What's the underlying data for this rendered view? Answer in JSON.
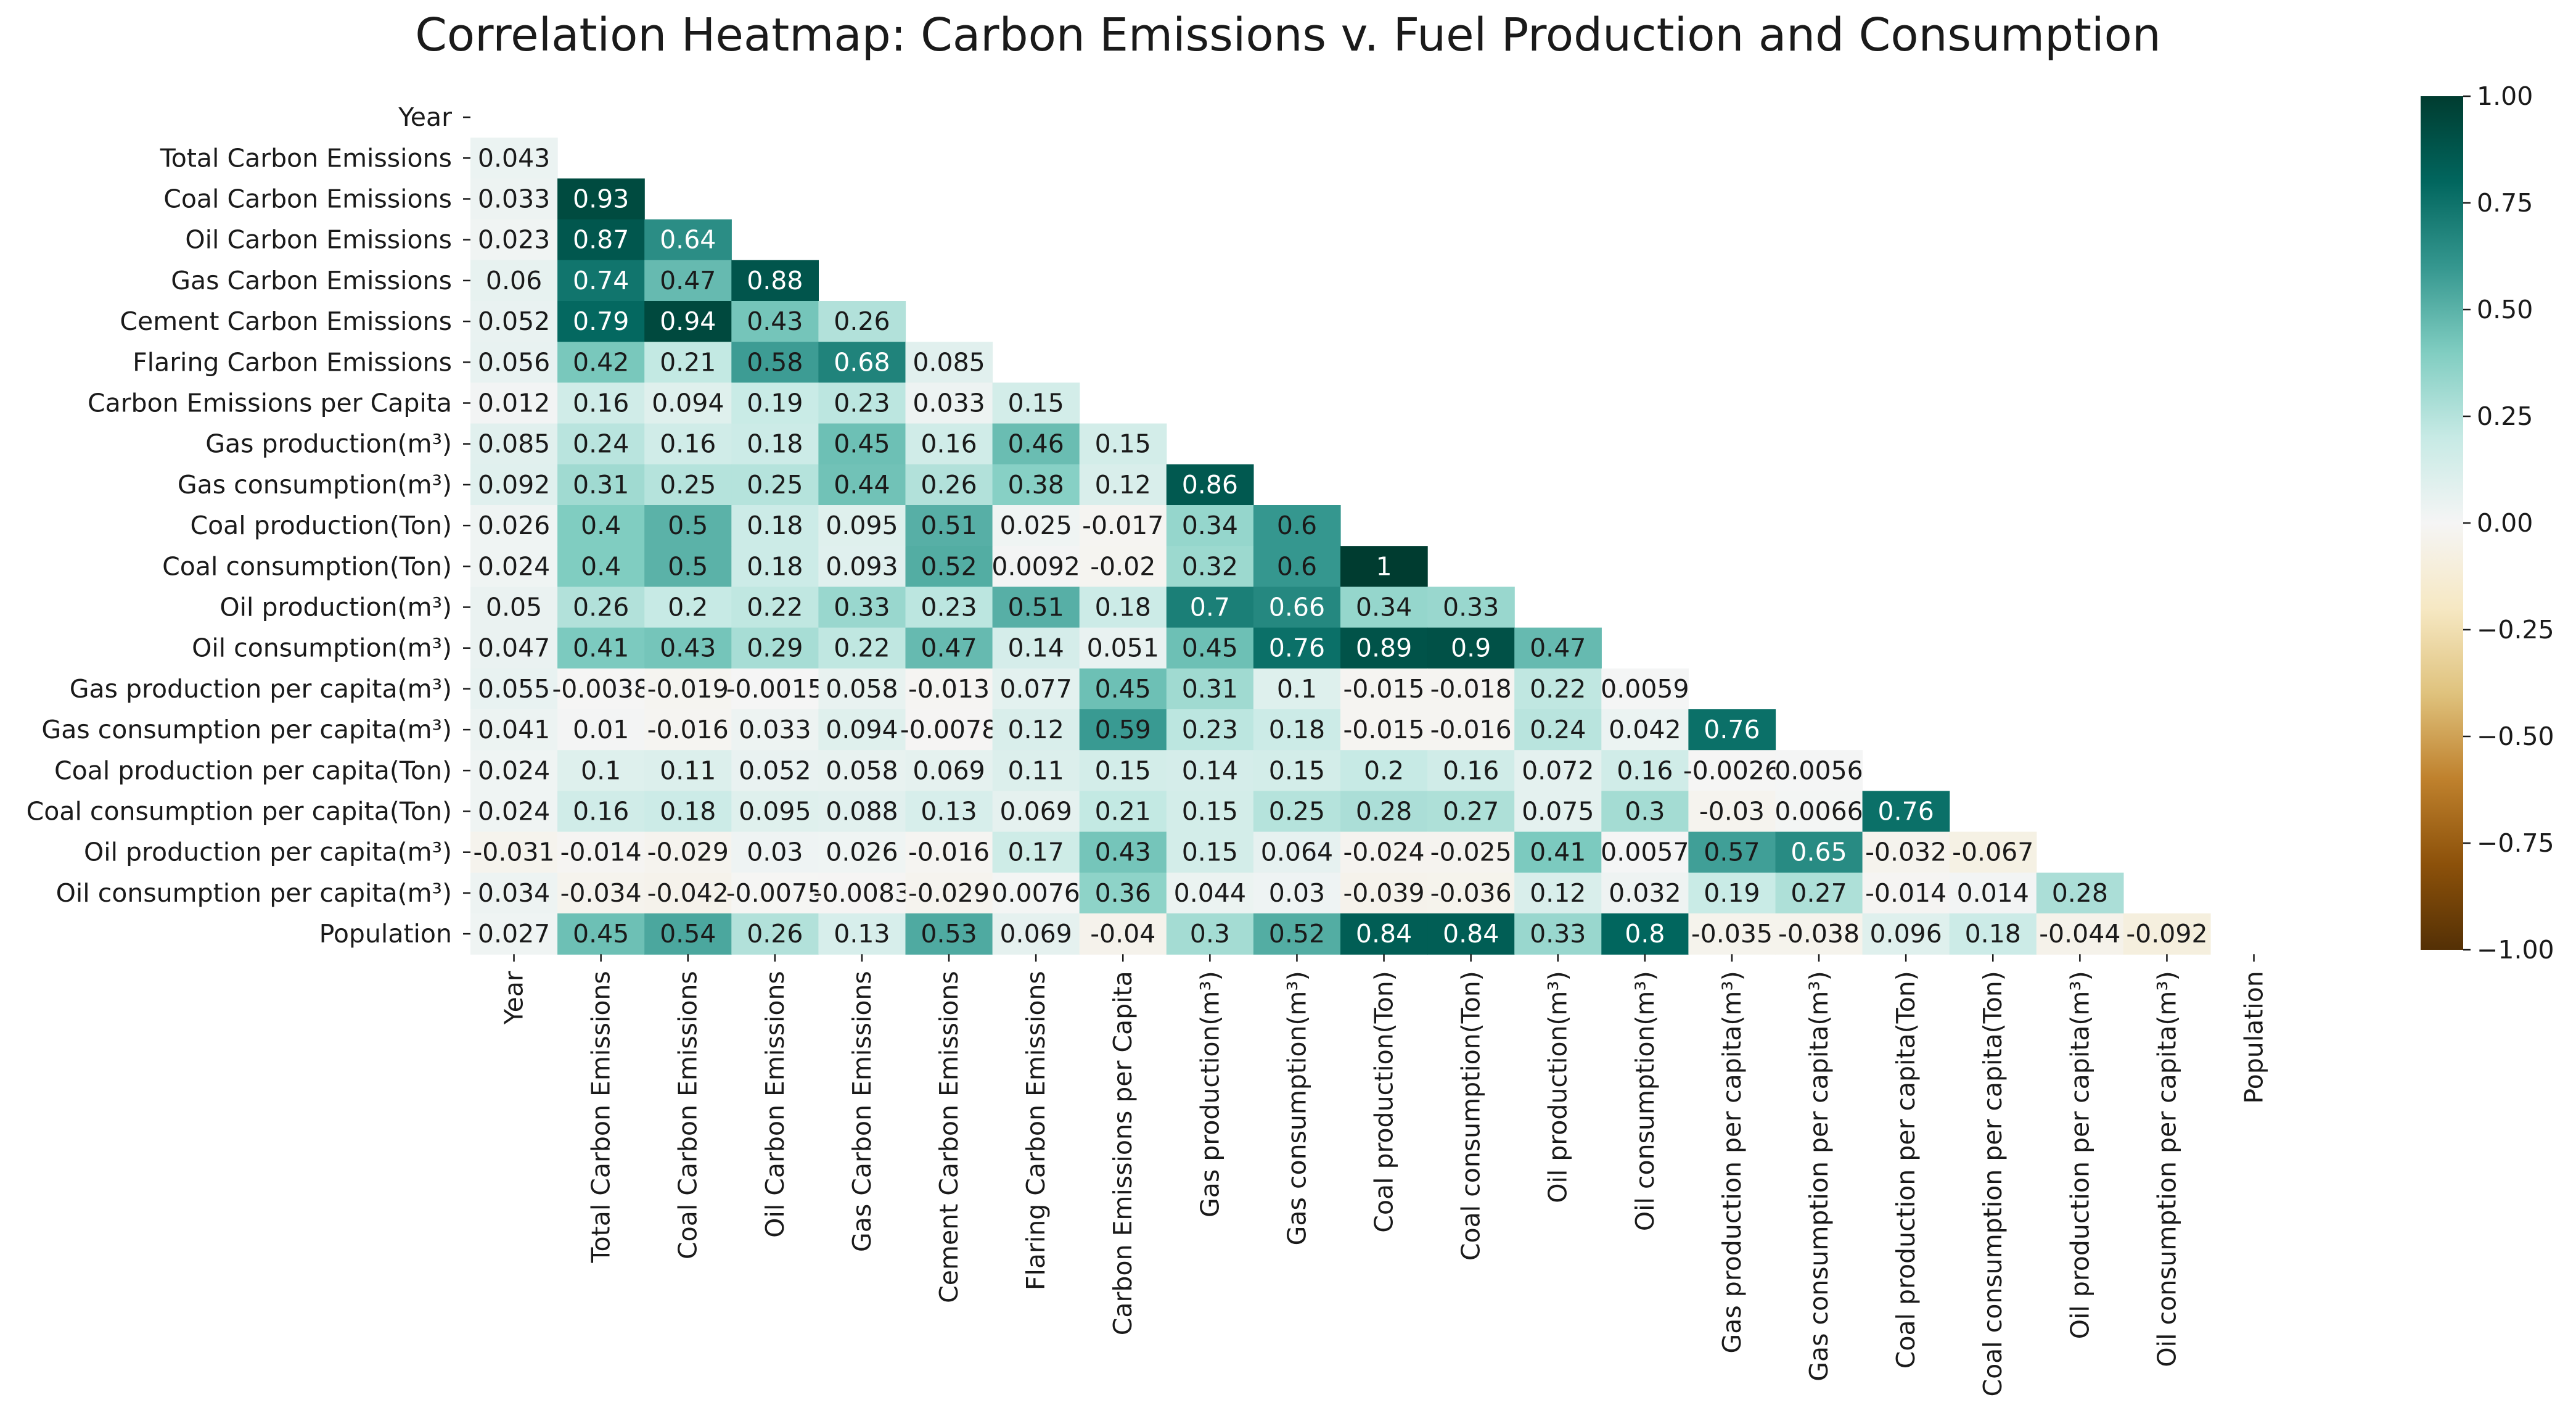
{
  "chart_data": {
    "type": "heatmap",
    "title": "Correlation Heatmap: Carbon Emissions v. Fuel Production and Consumption",
    "xlabel": "",
    "ylabel": "",
    "colormap": "BrBG",
    "vmin": -1.0,
    "vmax": 1.0,
    "mask": "upper-triangle-including-diagonal",
    "colorbar": {
      "ticks": [
        "1.00",
        "0.75",
        "0.50",
        "0.25",
        "0.00",
        "−0.25",
        "−0.50",
        "−0.75",
        "−1.00"
      ],
      "tick_values": [
        1.0,
        0.75,
        0.5,
        0.25,
        0.0,
        -0.25,
        -0.5,
        -0.75,
        -1.0
      ]
    },
    "variables": [
      "Year",
      "Total Carbon Emissions",
      "Coal Carbon Emissions",
      "Oil Carbon Emissions",
      "Gas Carbon Emissions",
      "Cement Carbon Emissions",
      "Flaring Carbon Emissions",
      "Carbon Emissions per Capita",
      "Gas production(m³)",
      "Gas consumption(m³)",
      "Coal production(Ton)",
      "Coal consumption(Ton)",
      "Oil production(m³)",
      "Oil consumption(m³)",
      "Gas production per capita(m³)",
      "Gas consumption per capita(m³)",
      "Coal production per capita(Ton)",
      "Coal consumption per capita(Ton)",
      "Oil production per capita(m³)",
      "Oil consumption per capita(m³)",
      "Population"
    ],
    "cells": [
      [],
      [
        "0.043"
      ],
      [
        "0.033",
        "0.93"
      ],
      [
        "0.023",
        "0.87",
        "0.64"
      ],
      [
        "0.06",
        "0.74",
        "0.47",
        "0.88"
      ],
      [
        "0.052",
        "0.79",
        "0.94",
        "0.43",
        "0.26"
      ],
      [
        "0.056",
        "0.42",
        "0.21",
        "0.58",
        "0.68",
        "0.085"
      ],
      [
        "0.012",
        "0.16",
        "0.094",
        "0.19",
        "0.23",
        "0.033",
        "0.15"
      ],
      [
        "0.085",
        "0.24",
        "0.16",
        "0.18",
        "0.45",
        "0.16",
        "0.46",
        "0.15"
      ],
      [
        "0.092",
        "0.31",
        "0.25",
        "0.25",
        "0.44",
        "0.26",
        "0.38",
        "0.12",
        "0.86"
      ],
      [
        "0.026",
        "0.4",
        "0.5",
        "0.18",
        "0.095",
        "0.51",
        "0.025",
        "-0.017",
        "0.34",
        "0.6"
      ],
      [
        "0.024",
        "0.4",
        "0.5",
        "0.18",
        "0.093",
        "0.52",
        "0.0092",
        "-0.02",
        "0.32",
        "0.6",
        "1"
      ],
      [
        "0.05",
        "0.26",
        "0.2",
        "0.22",
        "0.33",
        "0.23",
        "0.51",
        "0.18",
        "0.7",
        "0.66",
        "0.34",
        "0.33"
      ],
      [
        "0.047",
        "0.41",
        "0.43",
        "0.29",
        "0.22",
        "0.47",
        "0.14",
        "0.051",
        "0.45",
        "0.76",
        "0.89",
        "0.9",
        "0.47"
      ],
      [
        "0.055",
        "-0.0038",
        "-0.019",
        "-0.0015",
        "0.058",
        "-0.013",
        "0.077",
        "0.45",
        "0.31",
        "0.1",
        "-0.015",
        "-0.018",
        "0.22",
        "0.0059"
      ],
      [
        "0.041",
        "0.01",
        "-0.016",
        "0.033",
        "0.094",
        "-0.0078",
        "0.12",
        "0.59",
        "0.23",
        "0.18",
        "-0.015",
        "-0.016",
        "0.24",
        "0.042",
        "0.76"
      ],
      [
        "0.024",
        "0.1",
        "0.11",
        "0.052",
        "0.058",
        "0.069",
        "0.11",
        "0.15",
        "0.14",
        "0.15",
        "0.2",
        "0.16",
        "0.072",
        "0.16",
        "-0.0026",
        "0.0056"
      ],
      [
        "0.024",
        "0.16",
        "0.18",
        "0.095",
        "0.088",
        "0.13",
        "0.069",
        "0.21",
        "0.15",
        "0.25",
        "0.28",
        "0.27",
        "0.075",
        "0.3",
        "-0.03",
        "0.0066",
        "0.76"
      ],
      [
        "-0.031",
        "-0.014",
        "-0.029",
        "0.03",
        "0.026",
        "-0.016",
        "0.17",
        "0.43",
        "0.15",
        "0.064",
        "-0.024",
        "-0.025",
        "0.41",
        "0.0057",
        "0.57",
        "0.65",
        "-0.032",
        "-0.067"
      ],
      [
        "0.034",
        "-0.034",
        "-0.042",
        "-0.0075",
        "-0.0083",
        "-0.029",
        "0.0076",
        "0.36",
        "0.044",
        "0.03",
        "-0.039",
        "-0.036",
        "0.12",
        "0.032",
        "0.19",
        "0.27",
        "-0.014",
        "0.014",
        "0.28"
      ],
      [
        "0.027",
        "0.45",
        "0.54",
        "0.26",
        "0.13",
        "0.53",
        "0.069",
        "-0.04",
        "0.3",
        "0.52",
        "0.84",
        "0.84",
        "0.33",
        "0.8",
        "-0.035",
        "-0.038",
        "0.096",
        "0.18",
        "-0.044",
        "-0.092"
      ]
    ]
  }
}
